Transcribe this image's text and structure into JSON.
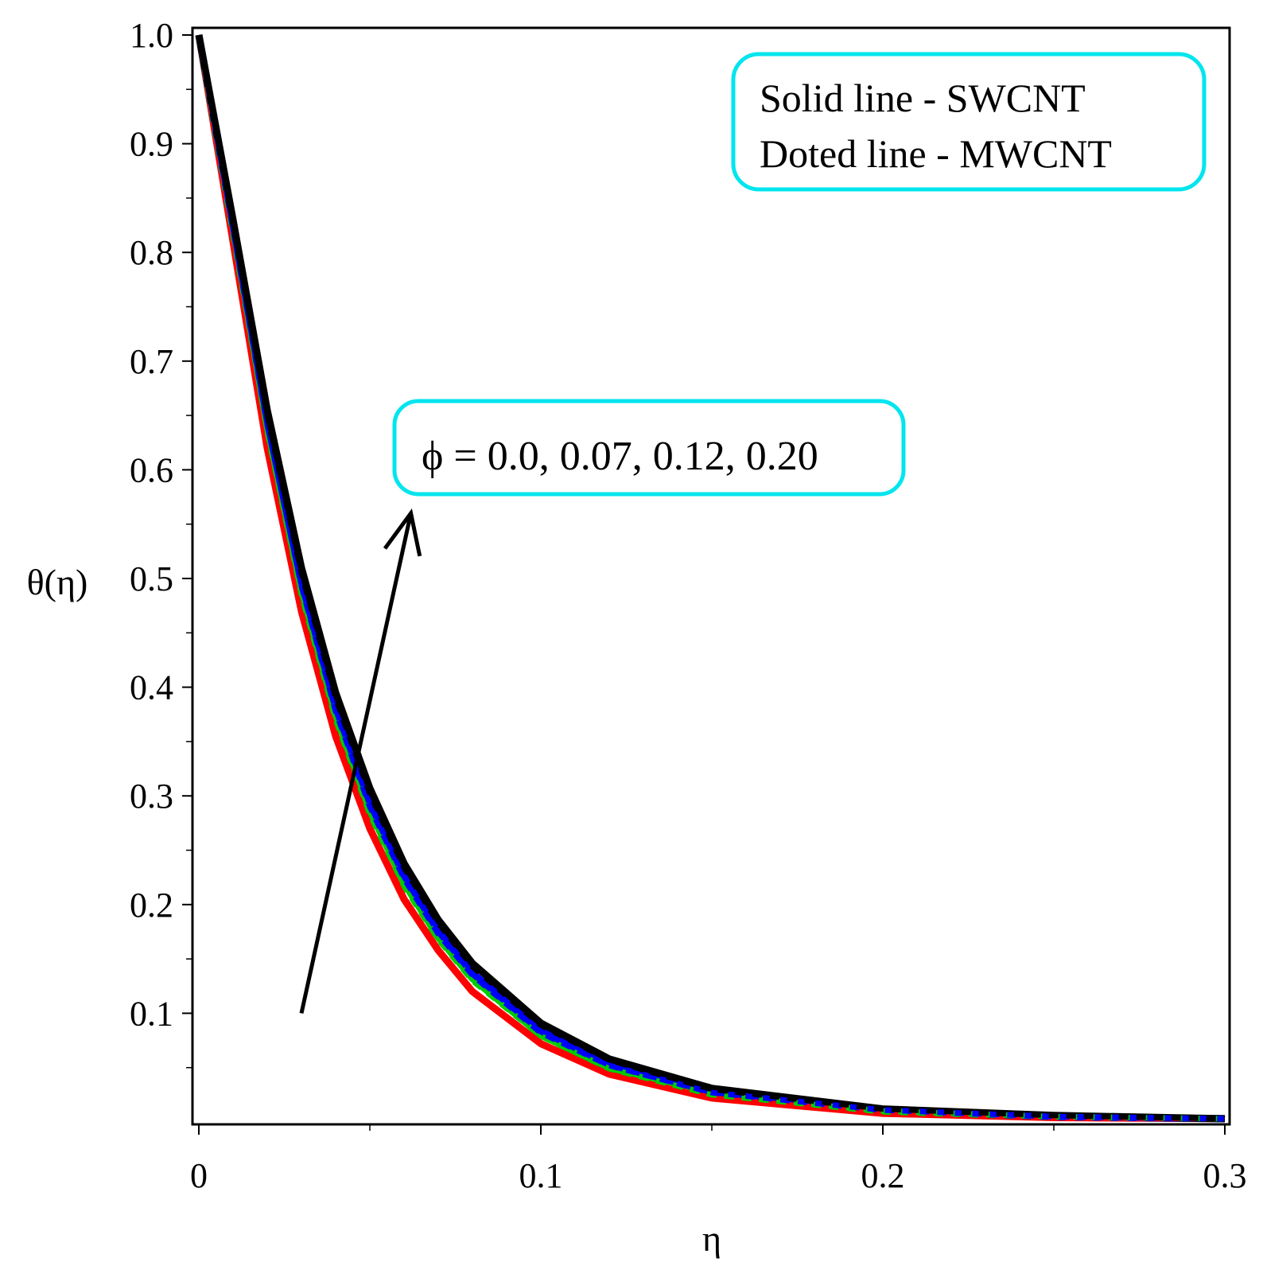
{
  "chart_data": {
    "type": "line",
    "title": "",
    "xlabel": "η",
    "ylabel": "θ(η)",
    "xlim": [
      0,
      0.3
    ],
    "ylim": [
      0,
      1.0
    ],
    "x_ticks": [
      "0",
      "0.1",
      "0.2",
      "0.3"
    ],
    "y_ticks": [
      "0.1",
      "0.2",
      "0.3",
      "0.4",
      "0.5",
      "0.6",
      "0.7",
      "0.8",
      "0.9",
      "1.0"
    ],
    "grid": false,
    "legend_note": {
      "solid": "Solid line - SWCNT",
      "dotted": "Doted line - MWCNT"
    },
    "annotation": {
      "label": "ϕ = 0.0, 0.07, 0.12, 0.20",
      "arrow_from": [
        0.03,
        0.1
      ],
      "arrow_to": [
        0.062,
        0.56
      ]
    },
    "x": [
      0,
      0.01,
      0.02,
      0.03,
      0.04,
      0.05,
      0.06,
      0.07,
      0.08,
      0.1,
      0.12,
      0.15,
      0.2,
      0.25,
      0.3
    ],
    "series": [
      {
        "name": "ϕ = 0.0 SWCNT",
        "style": "solid",
        "color": "#ff0000",
        "values": [
          1.0,
          0.81,
          0.62,
          0.47,
          0.355,
          0.27,
          0.205,
          0.158,
          0.12,
          0.072,
          0.044,
          0.022,
          0.008,
          0.004,
          0.003
        ]
      },
      {
        "name": "ϕ = 0.0 MWCNT",
        "style": "dotted",
        "color": "#ff0000",
        "values": [
          1.0,
          0.81,
          0.62,
          0.47,
          0.355,
          0.27,
          0.205,
          0.158,
          0.12,
          0.072,
          0.044,
          0.022,
          0.008,
          0.004,
          0.003
        ]
      },
      {
        "name": "ϕ = 0.07 SWCNT",
        "style": "solid",
        "color": "#00cc00",
        "values": [
          1.0,
          0.82,
          0.64,
          0.49,
          0.375,
          0.287,
          0.22,
          0.17,
          0.132,
          0.08,
          0.05,
          0.026,
          0.01,
          0.005,
          0.003
        ]
      },
      {
        "name": "ϕ = 0.07 MWCNT",
        "style": "dotted",
        "color": "#00cc00",
        "values": [
          1.0,
          0.82,
          0.635,
          0.485,
          0.37,
          0.283,
          0.217,
          0.168,
          0.13,
          0.079,
          0.049,
          0.025,
          0.01,
          0.005,
          0.003
        ]
      },
      {
        "name": "ϕ = 0.12 SWCNT",
        "style": "solid",
        "color": "#0000ff",
        "values": [
          1.0,
          0.825,
          0.645,
          0.497,
          0.382,
          0.294,
          0.227,
          0.176,
          0.137,
          0.084,
          0.053,
          0.028,
          0.011,
          0.005,
          0.003
        ]
      },
      {
        "name": "ϕ = 0.12 MWCNT",
        "style": "dotted",
        "color": "#0000ff",
        "values": [
          1.0,
          0.822,
          0.642,
          0.493,
          0.378,
          0.29,
          0.224,
          0.173,
          0.135,
          0.082,
          0.052,
          0.027,
          0.011,
          0.005,
          0.003
        ]
      },
      {
        "name": "ϕ = 0.20 SWCNT",
        "style": "solid",
        "color": "#000000",
        "values": [
          1.0,
          0.83,
          0.655,
          0.51,
          0.395,
          0.307,
          0.238,
          0.186,
          0.146,
          0.091,
          0.058,
          0.031,
          0.012,
          0.006,
          0.003
        ]
      },
      {
        "name": "ϕ = 0.20 MWCNT",
        "style": "dotted",
        "color": "#000000",
        "values": [
          1.0,
          0.828,
          0.65,
          0.505,
          0.39,
          0.302,
          0.234,
          0.183,
          0.143,
          0.089,
          0.057,
          0.03,
          0.012,
          0.006,
          0.003
        ]
      }
    ],
    "colors": {
      "frame": "#000000",
      "annotation_box": "#00e5ee",
      "arrow": "#000000"
    }
  }
}
